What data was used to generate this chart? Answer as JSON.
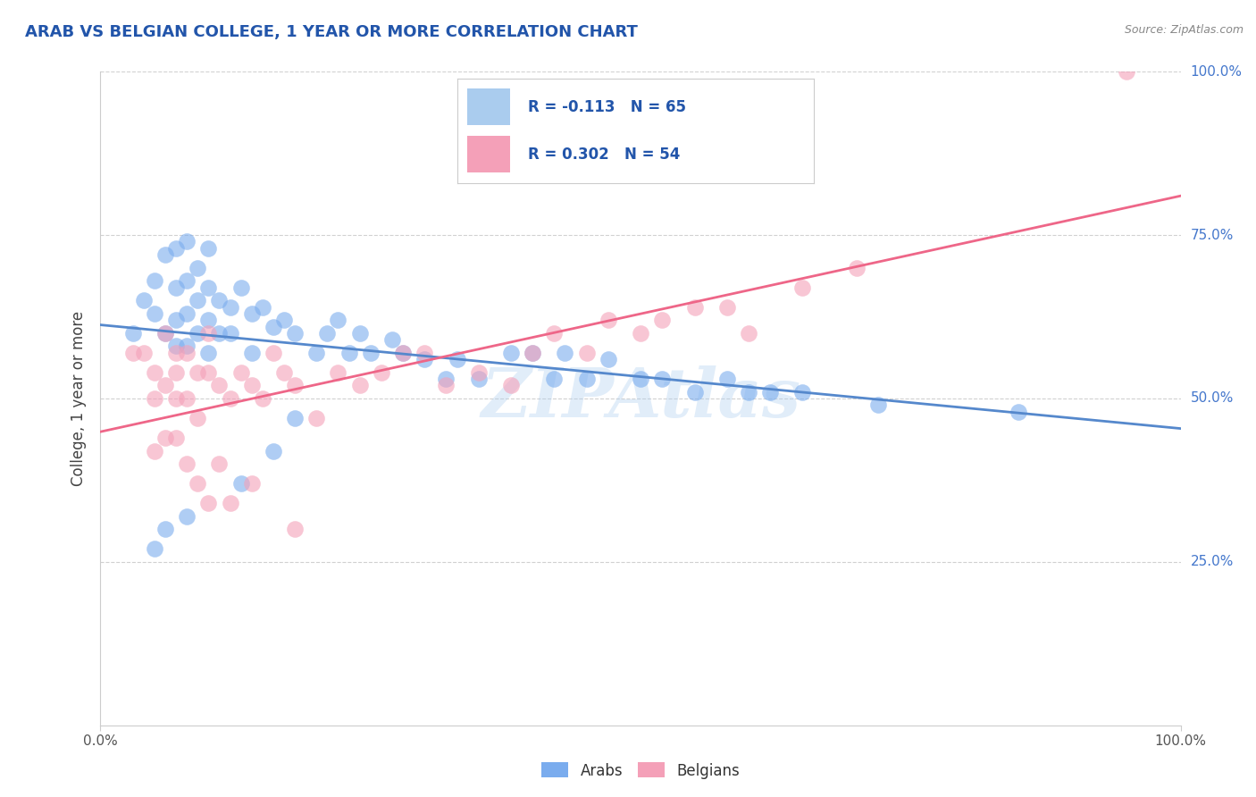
{
  "title": "ARAB VS BELGIAN COLLEGE, 1 YEAR OR MORE CORRELATION CHART",
  "source_text": "Source: ZipAtlas.com",
  "ylabel": "College, 1 year or more",
  "title_color": "#2255aa",
  "title_fontsize": 13,
  "background_color": "#ffffff",
  "plot_bg_color": "#ffffff",
  "grid_color": "#cccccc",
  "xlim": [
    0.0,
    1.0
  ],
  "ylim": [
    0.0,
    1.0
  ],
  "ytick_labels": [
    "25.0%",
    "50.0%",
    "75.0%",
    "100.0%"
  ],
  "ytick_positions": [
    0.25,
    0.5,
    0.75,
    1.0
  ],
  "arab_color": "#7aacee",
  "belgian_color": "#f4a0b8",
  "arab_line_color": "#5588cc",
  "belgian_line_color": "#ee6688",
  "arab_R": -0.113,
  "arab_N": 65,
  "belgian_R": 0.302,
  "belgian_N": 54,
  "watermark_text": "ZIPAtlas",
  "watermark_color": "#aaccee",
  "watermark_alpha": 0.35,
  "legend_box_arab": "#aaccee",
  "legend_box_belgian": "#f4a0b8",
  "legend_text_color": "#2255aa",
  "arab_scatter_x": [
    0.03,
    0.04,
    0.05,
    0.05,
    0.06,
    0.06,
    0.07,
    0.07,
    0.07,
    0.07,
    0.08,
    0.08,
    0.08,
    0.08,
    0.09,
    0.09,
    0.09,
    0.1,
    0.1,
    0.1,
    0.1,
    0.11,
    0.11,
    0.12,
    0.12,
    0.13,
    0.14,
    0.14,
    0.15,
    0.16,
    0.17,
    0.18,
    0.2,
    0.21,
    0.22,
    0.23,
    0.24,
    0.25,
    0.27,
    0.3,
    0.33,
    0.35,
    0.38,
    0.4,
    0.42,
    0.45,
    0.47,
    0.5,
    0.52,
    0.55,
    0.58,
    0.6,
    0.62,
    0.65,
    0.28,
    0.32,
    0.43,
    0.18,
    0.16,
    0.13,
    0.08,
    0.06,
    0.05,
    0.72,
    0.85
  ],
  "arab_scatter_y": [
    0.6,
    0.65,
    0.63,
    0.68,
    0.6,
    0.72,
    0.62,
    0.58,
    0.67,
    0.73,
    0.58,
    0.63,
    0.68,
    0.74,
    0.6,
    0.65,
    0.7,
    0.57,
    0.62,
    0.67,
    0.73,
    0.6,
    0.65,
    0.6,
    0.64,
    0.67,
    0.63,
    0.57,
    0.64,
    0.61,
    0.62,
    0.6,
    0.57,
    0.6,
    0.62,
    0.57,
    0.6,
    0.57,
    0.59,
    0.56,
    0.56,
    0.53,
    0.57,
    0.57,
    0.53,
    0.53,
    0.56,
    0.53,
    0.53,
    0.51,
    0.53,
    0.51,
    0.51,
    0.51,
    0.57,
    0.53,
    0.57,
    0.47,
    0.42,
    0.37,
    0.32,
    0.3,
    0.27,
    0.49,
    0.48
  ],
  "belgian_scatter_x": [
    0.03,
    0.04,
    0.05,
    0.05,
    0.06,
    0.06,
    0.07,
    0.07,
    0.07,
    0.08,
    0.08,
    0.09,
    0.09,
    0.1,
    0.1,
    0.11,
    0.12,
    0.13,
    0.14,
    0.15,
    0.16,
    0.17,
    0.18,
    0.2,
    0.22,
    0.24,
    0.26,
    0.28,
    0.3,
    0.32,
    0.35,
    0.38,
    0.4,
    0.42,
    0.45,
    0.47,
    0.5,
    0.52,
    0.55,
    0.58,
    0.6,
    0.65,
    0.7,
    0.05,
    0.06,
    0.07,
    0.08,
    0.09,
    0.1,
    0.11,
    0.12,
    0.14,
    0.18,
    0.95
  ],
  "belgian_scatter_y": [
    0.57,
    0.57,
    0.5,
    0.54,
    0.52,
    0.6,
    0.54,
    0.57,
    0.5,
    0.57,
    0.5,
    0.54,
    0.47,
    0.54,
    0.6,
    0.52,
    0.5,
    0.54,
    0.52,
    0.5,
    0.57,
    0.54,
    0.52,
    0.47,
    0.54,
    0.52,
    0.54,
    0.57,
    0.57,
    0.52,
    0.54,
    0.52,
    0.57,
    0.6,
    0.57,
    0.62,
    0.6,
    0.62,
    0.64,
    0.64,
    0.6,
    0.67,
    0.7,
    0.42,
    0.44,
    0.44,
    0.4,
    0.37,
    0.34,
    0.4,
    0.34,
    0.37,
    0.3,
    1.0
  ]
}
